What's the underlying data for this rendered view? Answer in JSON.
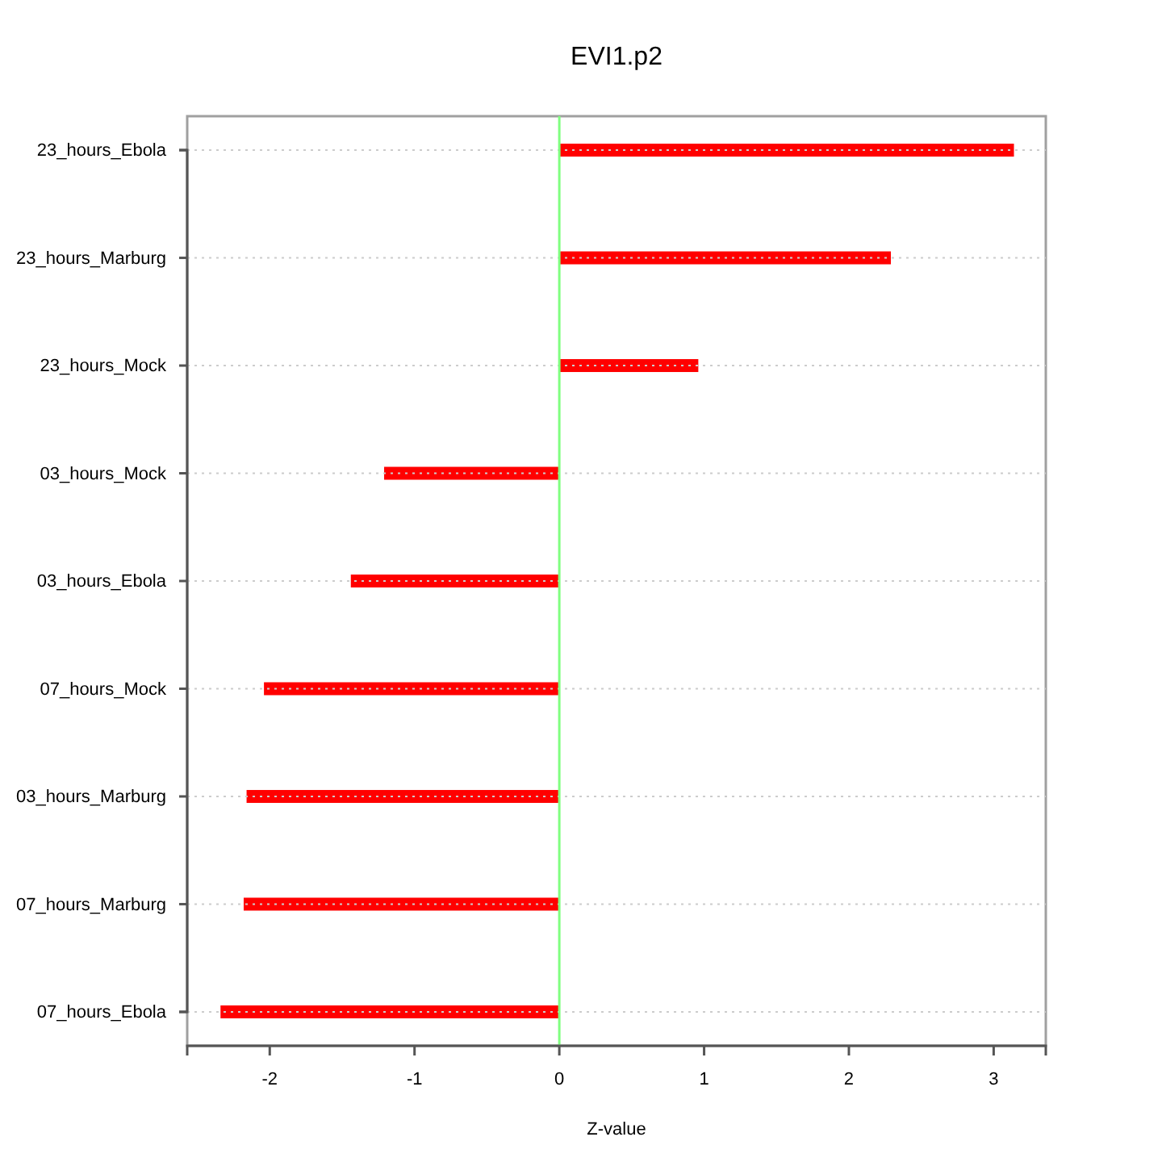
{
  "chart_data": {
    "type": "bar",
    "orientation": "horizontal",
    "title": "EVI1.p2",
    "xlabel": "Z-value",
    "categories": [
      "23_hours_Ebola",
      "23_hours_Marburg",
      "23_hours_Mock",
      "03_hours_Mock",
      "03_hours_Ebola",
      "07_hours_Mock",
      "03_hours_Marburg",
      "07_hours_Marburg",
      "07_hours_Ebola"
    ],
    "values": [
      3.14,
      2.29,
      0.96,
      -1.21,
      -1.44,
      -2.04,
      -2.16,
      -2.18,
      -2.34
    ],
    "color": "#ff0000",
    "xlim": [
      -2.57,
      3.36
    ],
    "xticks": [
      -2,
      -1,
      0,
      1,
      2,
      3
    ],
    "grid": "y",
    "ref_lines": [
      {
        "axis": "x",
        "value": 0,
        "color": "#80ff80"
      }
    ]
  }
}
